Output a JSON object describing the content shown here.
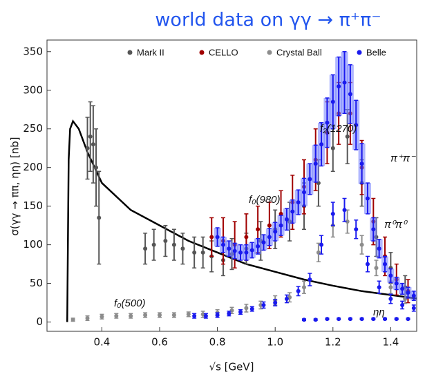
{
  "chart_data": {
    "type": "scatter",
    "title": "world data on γγ → π⁺π⁻",
    "xlabel": "√s [GeV]",
    "ylabel": "σ(γγ → ππ, ηη) [nb]",
    "xlim": [
      0.21,
      1.49
    ],
    "ylim": [
      -12,
      365
    ],
    "xticks": [
      0.4,
      0.6,
      0.8,
      {
        "value": 1,
        "label": "1.0"
      },
      1.2,
      1.4
    ],
    "yticks": [
      0,
      50,
      100,
      150,
      200,
      250,
      300,
      350
    ],
    "legend": "top",
    "annotations": [
      "f₂(1270)",
      "π⁺π⁻",
      "f₀(980)",
      "π⁰π⁰",
      "f₀(500)",
      "ηη"
    ],
    "series": [
      {
        "style": "line",
        "color": "#000000",
        "x": [
          0.28,
          0.285,
          0.29,
          0.3,
          0.32,
          0.35,
          0.4,
          0.5,
          0.6,
          0.7,
          0.8,
          0.9,
          1.0,
          1.1,
          1.2,
          1.3,
          1.4,
          1.5
        ],
        "values": [
          0,
          210,
          250,
          260,
          250,
          220,
          180,
          145,
          125,
          105,
          90,
          75,
          65,
          55,
          47,
          40,
          35,
          30
        ]
      },
      {
        "name": "Mark II",
        "style": "points",
        "color": "#555555",
        "x": [
          0.35,
          0.36,
          0.37,
          0.38,
          0.39,
          0.55,
          0.58,
          0.62,
          0.65,
          0.68,
          0.72,
          0.75,
          0.78,
          0.82,
          0.85,
          0.9,
          0.95,
          1.0,
          1.05,
          1.1,
          1.15,
          1.2,
          1.25,
          1.3,
          1.35,
          1.4,
          1.45
        ],
        "values": [
          225,
          240,
          230,
          200,
          135,
          95,
          100,
          105,
          100,
          95,
          90,
          90,
          85,
          80,
          88,
          95,
          105,
          120,
          130,
          150,
          180,
          225,
          240,
          180,
          110,
          70,
          45
        ],
        "errors": [
          40,
          45,
          50,
          50,
          60,
          20,
          20,
          20,
          20,
          20,
          20,
          20,
          20,
          20,
          20,
          20,
          25,
          25,
          25,
          30,
          30,
          30,
          35,
          30,
          25,
          20,
          15
        ]
      },
      {
        "name": "CELLO",
        "style": "points",
        "color": "#a00000",
        "x": [
          0.78,
          0.82,
          0.86,
          0.9,
          0.94,
          0.98,
          1.02,
          1.06,
          1.1,
          1.14,
          1.18,
          1.22,
          1.26,
          1.3,
          1.34,
          1.38,
          1.42,
          1.46
        ],
        "values": [
          110,
          105,
          100,
          110,
          120,
          125,
          140,
          155,
          175,
          210,
          245,
          270,
          270,
          200,
          130,
          85,
          55,
          40
        ],
        "errors": [
          25,
          30,
          30,
          30,
          30,
          30,
          30,
          35,
          35,
          40,
          40,
          40,
          40,
          35,
          30,
          25,
          20,
          15
        ]
      },
      {
        "name": "Crystal Ball",
        "style": "points",
        "color": "#8c8c8c",
        "x": [
          0.3,
          0.35,
          0.4,
          0.45,
          0.5,
          0.55,
          0.6,
          0.65,
          0.7,
          0.75,
          0.8,
          0.85,
          0.9,
          0.95,
          1.0,
          1.05,
          1.1,
          1.15,
          1.2,
          1.25,
          1.3,
          1.35,
          1.4,
          1.45
        ],
        "values": [
          3,
          5,
          7,
          8,
          8,
          9,
          9,
          9,
          10,
          10,
          12,
          15,
          18,
          22,
          28,
          32,
          45,
          90,
          125,
          130,
          100,
          70,
          45,
          30
        ],
        "errors": [
          2,
          3,
          3,
          3,
          3,
          3,
          3,
          3,
          3,
          4,
          4,
          4,
          5,
          5,
          6,
          6,
          8,
          12,
          15,
          15,
          12,
          10,
          8,
          6
        ]
      },
      {
        "name": "Belle",
        "style": "points",
        "color": "#1a1aee",
        "x": [
          0.8,
          0.82,
          0.84,
          0.86,
          0.88,
          0.9,
          0.92,
          0.94,
          0.96,
          0.98,
          1.0,
          1.02,
          1.04,
          1.06,
          1.08,
          1.1,
          1.12,
          1.14,
          1.16,
          1.18,
          1.2,
          1.22,
          1.24,
          1.26,
          1.28,
          1.3,
          1.32,
          1.34,
          1.36,
          1.38,
          1.4,
          1.42,
          1.44,
          1.46,
          1.48
        ],
        "values": [
          110,
          100,
          95,
          92,
          90,
          90,
          93,
          98,
          103,
          110,
          117,
          125,
          133,
          143,
          155,
          168,
          185,
          205,
          230,
          258,
          285,
          305,
          310,
          295,
          255,
          205,
          160,
          120,
          95,
          75,
          60,
          50,
          43,
          38,
          34
        ],
        "errors": [
          12,
          10,
          10,
          10,
          10,
          10,
          10,
          10,
          10,
          11,
          12,
          13,
          14,
          15,
          16,
          18,
          20,
          24,
          28,
          32,
          35,
          38,
          40,
          38,
          32,
          26,
          20,
          15,
          12,
          10,
          9,
          8,
          7,
          7,
          6
        ]
      },
      {
        "style": "points",
        "color": "#1a1aee",
        "x": [
          0.72,
          0.76,
          0.8,
          0.84,
          0.88,
          0.92,
          0.96,
          1.0,
          1.04,
          1.08,
          1.12,
          1.16,
          1.2,
          1.24,
          1.28,
          1.32,
          1.36,
          1.4,
          1.44,
          1.48
        ],
        "values": [
          8,
          8,
          9,
          11,
          13,
          17,
          22,
          25,
          30,
          40,
          55,
          100,
          140,
          145,
          120,
          75,
          45,
          30,
          22,
          18
        ],
        "errors": [
          3,
          3,
          3,
          3,
          3,
          3,
          4,
          4,
          5,
          6,
          8,
          12,
          15,
          15,
          12,
          10,
          8,
          6,
          5,
          4
        ]
      },
      {
        "style": "points",
        "color": "#1a1aee",
        "x": [
          1.1,
          1.14,
          1.18,
          1.22,
          1.26,
          1.3,
          1.34,
          1.38,
          1.42,
          1.46,
          1.5
        ],
        "values": [
          3,
          3,
          4,
          4,
          4,
          4,
          4,
          4,
          4,
          4,
          4
        ],
        "errors": [
          1,
          1,
          1,
          1,
          1,
          1,
          1,
          1,
          1,
          1,
          1
        ]
      }
    ]
  }
}
